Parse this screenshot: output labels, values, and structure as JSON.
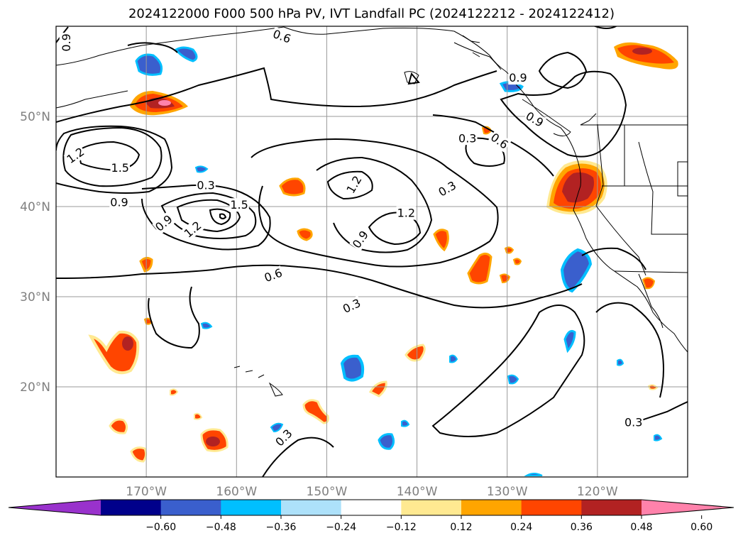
{
  "title": "2024122000 F000 500 hPa PV, IVT Landfall PC (2024122212 - 2024122412)",
  "map": {
    "lon_range": [
      -180,
      -110
    ],
    "lat_range": [
      10,
      60
    ],
    "lon_ticks": [
      {
        "lon": -170,
        "label": "170°W"
      },
      {
        "lon": -160,
        "label": "160°W"
      },
      {
        "lon": -150,
        "label": "150°W"
      },
      {
        "lon": -140,
        "label": "140°W"
      },
      {
        "lon": -130,
        "label": "130°W"
      },
      {
        "lon": -120,
        "label": "120°W"
      }
    ],
    "lat_ticks": [
      {
        "lat": 50,
        "label": "50°N"
      },
      {
        "lat": 40,
        "label": "40°N"
      },
      {
        "lat": 30,
        "label": "30°N"
      },
      {
        "lat": 20,
        "label": "20°N"
      }
    ],
    "gridlines": true,
    "contour_labels": [
      {
        "text": "0.9",
        "lon": -178.8,
        "lat": 58.2,
        "rot": -90
      },
      {
        "text": "0.6",
        "lon": -155.0,
        "lat": 58.8,
        "rot": 20
      },
      {
        "text": "0.9",
        "lon": -128.8,
        "lat": 54.2,
        "rot": 0
      },
      {
        "text": "0.9",
        "lon": -127.0,
        "lat": 49.6,
        "rot": 30
      },
      {
        "text": "0.3",
        "lon": -134.4,
        "lat": 47.5,
        "rot": 0
      },
      {
        "text": "0.6",
        "lon": -130.9,
        "lat": 47.2,
        "rot": 35
      },
      {
        "text": "0.3",
        "lon": -136.6,
        "lat": 41.9,
        "rot": -30
      },
      {
        "text": "1.2",
        "lon": -177.8,
        "lat": 45.6,
        "rot": -35
      },
      {
        "text": "1.5",
        "lon": -172.9,
        "lat": 44.2,
        "rot": 0
      },
      {
        "text": "0.9",
        "lon": -173.0,
        "lat": 40.4,
        "rot": 0
      },
      {
        "text": "0.3",
        "lon": -163.4,
        "lat": 42.3,
        "rot": 0
      },
      {
        "text": "1.5",
        "lon": -159.7,
        "lat": 40.1,
        "rot": 0
      },
      {
        "text": "0.9",
        "lon": -168.0,
        "lat": 38.1,
        "rot": -40
      },
      {
        "text": "1.2",
        "lon": -164.8,
        "lat": 37.4,
        "rot": -40
      },
      {
        "text": "0.6",
        "lon": -155.9,
        "lat": 32.3,
        "rot": -20
      },
      {
        "text": "0.3",
        "lon": -147.2,
        "lat": 28.9,
        "rot": -25
      },
      {
        "text": "1.2",
        "lon": -146.9,
        "lat": 42.4,
        "rot": -60
      },
      {
        "text": "0.9",
        "lon": -146.2,
        "lat": 36.3,
        "rot": -55
      },
      {
        "text": "1.2",
        "lon": -141.2,
        "lat": 39.2,
        "rot": 0
      },
      {
        "text": "0.3",
        "lon": -154.7,
        "lat": 14.3,
        "rot": -45
      },
      {
        "text": "0.3",
        "lon": -116.0,
        "lat": 16.0,
        "rot": 0
      }
    ]
  },
  "colorbar": {
    "colors": [
      "#9932CC",
      "#00008B",
      "#3A5FCD",
      "#00BFFF",
      "#ADE1FA",
      "#FFFFFF",
      "#FFE991",
      "#FFA500",
      "#FF4500",
      "#B22222",
      "#FF82AB"
    ],
    "tick_labels": [
      "−0.60",
      "−0.48",
      "−0.36",
      "−0.24",
      "−0.12",
      "0.12",
      "0.24",
      "0.36",
      "0.48",
      "0.60"
    ]
  }
}
